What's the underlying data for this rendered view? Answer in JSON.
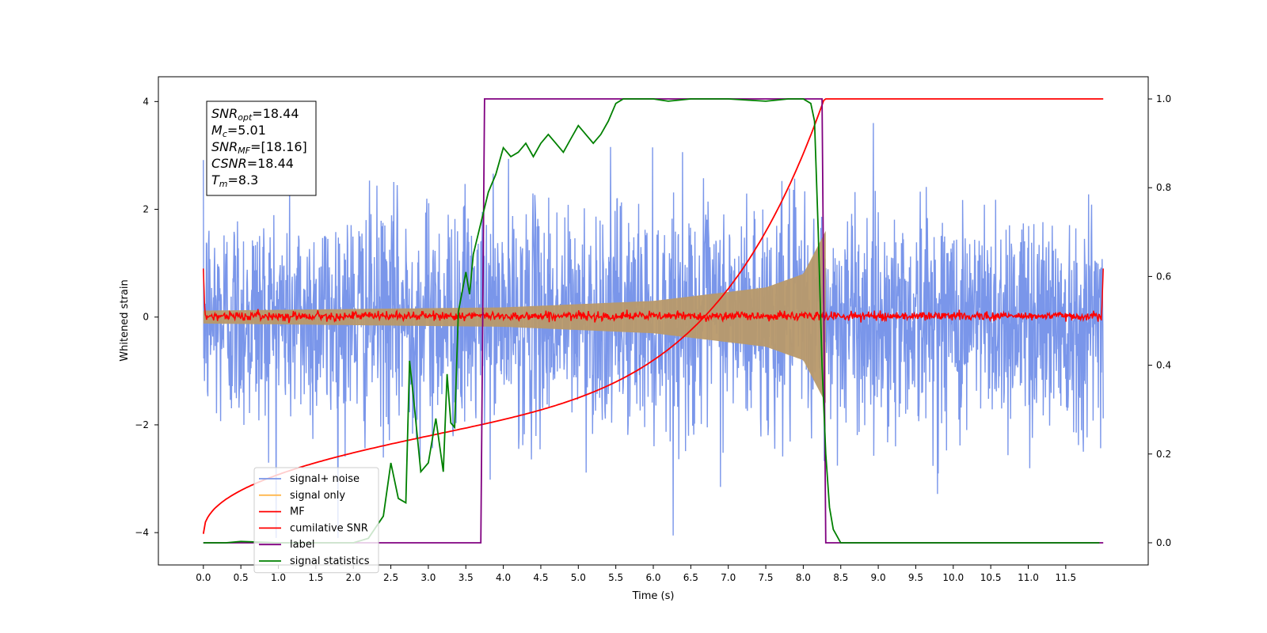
{
  "chart_data": {
    "type": "line",
    "xlabel": "Time (s)",
    "ylabel": "Whitened strain",
    "xlim": [
      -0.6,
      12.6
    ],
    "ylim": [
      -4.6,
      4.46
    ],
    "y2lim": [
      -0.05,
      1.05
    ],
    "x_ticks": [
      "0.0",
      "0.5",
      "1.0",
      "1.5",
      "2.0",
      "2.5",
      "3.0",
      "3.5",
      "4.0",
      "4.5",
      "5.0",
      "5.5",
      "6.0",
      "6.5",
      "7.0",
      "7.5",
      "8.0",
      "8.5",
      "9.0",
      "9.5",
      "10.0",
      "10.5",
      "11.0",
      "11.5"
    ],
    "y_ticks": [
      "-4",
      "-2",
      "0",
      "2",
      "4"
    ],
    "y2_ticks": [
      "0.0",
      "0.2",
      "0.4",
      "0.6",
      "0.8",
      "1.0"
    ],
    "annotation": [
      {
        "sym": "SNR",
        "sub": "opt",
        "val": "=18.44"
      },
      {
        "sym": "M",
        "sub": "c",
        "val": "=5.01"
      },
      {
        "sym": "SNR",
        "sub": "MF",
        "val": "=[18.16]"
      },
      {
        "sym": "CSNR",
        "sub": "",
        "val": "=18.44"
      },
      {
        "sym": "T",
        "sub": "m",
        "val": "=8.3"
      }
    ],
    "legend_position": "lower-left",
    "series": [
      {
        "name": "signal+ noise",
        "color": "#4169E1",
        "axis": "left",
        "style": "noise",
        "x_range": [
          0,
          12.0
        ],
        "amplitude": 1.0
      },
      {
        "name": "signal only",
        "color": "#FFB74D",
        "axis": "left",
        "style": "chirp",
        "x_range": [
          0,
          8.3
        ],
        "envelope": [
          [
            0,
            0.12
          ],
          [
            4.0,
            0.18
          ],
          [
            6.0,
            0.3
          ],
          [
            7.5,
            0.55
          ],
          [
            8.0,
            0.8
          ],
          [
            8.3,
            1.6
          ]
        ]
      },
      {
        "name": "MF",
        "color": "#FF0000",
        "axis": "left",
        "style": "mf",
        "x_range": [
          0,
          12.0
        ],
        "level": 0.02
      },
      {
        "name": "cumilative SNR",
        "color": "#FF0000",
        "axis": "right",
        "x": [
          0.0,
          0.5,
          1.0,
          1.5,
          2.0,
          2.5,
          3.0,
          3.5,
          4.0,
          4.5,
          5.0,
          5.5,
          6.0,
          6.5,
          7.0,
          7.5,
          7.8,
          8.0,
          8.2,
          8.3,
          8.4,
          12.0
        ],
        "values": [
          0.01,
          0.08,
          0.12,
          0.15,
          0.18,
          0.21,
          0.24,
          0.27,
          0.3,
          0.33,
          0.36,
          0.4,
          0.45,
          0.5,
          0.56,
          0.64,
          0.71,
          0.78,
          0.9,
          1.0,
          1.0,
          1.0
        ]
      },
      {
        "name": "label",
        "color": "#800080",
        "axis": "right",
        "x": [
          0.0,
          3.7,
          3.75,
          8.25,
          8.3,
          12.0
        ],
        "values": [
          0.0,
          0.0,
          1.0,
          1.0,
          0.0,
          0.0
        ]
      },
      {
        "name": "signal statistics",
        "color": "#008000",
        "axis": "right",
        "x": [
          0.0,
          0.3,
          0.5,
          1.0,
          1.5,
          2.0,
          2.2,
          2.4,
          2.5,
          2.6,
          2.7,
          2.75,
          2.8,
          2.9,
          3.0,
          3.1,
          3.2,
          3.25,
          3.3,
          3.35,
          3.4,
          3.5,
          3.55,
          3.6,
          3.7,
          3.8,
          3.9,
          4.0,
          4.1,
          4.2,
          4.3,
          4.4,
          4.5,
          4.6,
          4.7,
          4.8,
          4.9,
          5.0,
          5.1,
          5.2,
          5.3,
          5.4,
          5.5,
          5.6,
          5.8,
          6.0,
          6.2,
          6.5,
          7.0,
          7.5,
          7.8,
          8.0,
          8.1,
          8.15,
          8.2,
          8.25,
          8.3,
          8.35,
          8.4,
          8.5,
          9.0,
          10.0,
          11.0,
          11.95
        ],
        "values": [
          0.0,
          0.0,
          0.003,
          0.0,
          0.0,
          0.0,
          0.01,
          0.06,
          0.18,
          0.1,
          0.09,
          0.41,
          0.33,
          0.16,
          0.18,
          0.28,
          0.16,
          0.38,
          0.27,
          0.26,
          0.52,
          0.61,
          0.56,
          0.65,
          0.72,
          0.79,
          0.83,
          0.89,
          0.87,
          0.88,
          0.9,
          0.87,
          0.9,
          0.92,
          0.9,
          0.88,
          0.91,
          0.94,
          0.92,
          0.9,
          0.92,
          0.95,
          0.99,
          1.0,
          1.0,
          1.0,
          0.995,
          1.0,
          1.0,
          0.995,
          1.0,
          1.0,
          0.99,
          0.95,
          0.7,
          0.4,
          0.2,
          0.08,
          0.03,
          0.0,
          0.0,
          0.0,
          0.0,
          0.0
        ]
      }
    ]
  }
}
